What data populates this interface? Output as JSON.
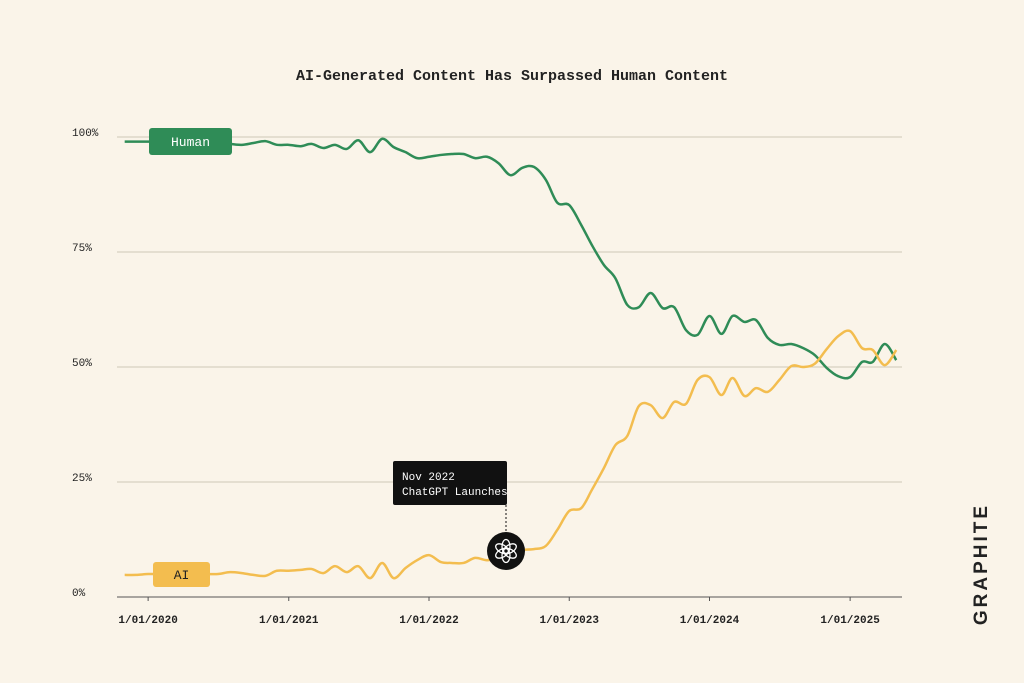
{
  "chart_data": {
    "type": "line",
    "title": "AI-Generated Content Has Surpassed Human Content",
    "brand": "GRAPHITE",
    "annotation": {
      "lines": [
        "Nov 2022",
        "ChatGPT Launches"
      ]
    },
    "x": [
      "2019-11-01",
      "2019-12-01",
      "2020-01-01",
      "2020-02-01",
      "2020-03-01",
      "2020-04-01",
      "2020-05-01",
      "2020-06-01",
      "2020-07-01",
      "2020-08-01",
      "2020-09-01",
      "2020-10-01",
      "2020-11-01",
      "2020-12-01",
      "2021-01-01",
      "2021-02-01",
      "2021-03-01",
      "2021-04-01",
      "2021-05-01",
      "2021-06-01",
      "2021-07-01",
      "2021-08-01",
      "2021-09-01",
      "2021-10-01",
      "2021-11-01",
      "2021-12-01",
      "2022-01-01",
      "2022-02-01",
      "2022-03-01",
      "2022-04-01",
      "2022-05-01",
      "2022-06-01",
      "2022-07-01",
      "2022-08-01",
      "2022-09-01",
      "2022-10-01",
      "2022-11-01",
      "2022-12-01",
      "2023-01-01",
      "2023-02-01",
      "2023-03-01",
      "2023-04-01",
      "2023-05-01",
      "2023-06-01",
      "2023-07-01",
      "2023-08-01",
      "2023-09-01",
      "2023-10-01",
      "2023-11-01",
      "2023-12-01",
      "2024-01-01",
      "2024-02-01",
      "2024-03-01",
      "2024-04-01",
      "2024-05-01",
      "2024-06-01",
      "2024-07-01",
      "2024-08-01",
      "2024-09-01",
      "2024-10-01",
      "2024-11-01",
      "2024-12-01",
      "2025-01-01",
      "2025-02-01",
      "2025-03-01",
      "2025-04-01",
      "2025-05-01"
    ],
    "series": [
      {
        "name": "Human",
        "color": "#2f8c57",
        "values": [
          99,
          99,
          99,
          99,
          99,
          99,
          99,
          99,
          99,
          98.5,
          98.3,
          98.7,
          99.1,
          98.3,
          98.3,
          98,
          98.5,
          97.6,
          98.3,
          97.4,
          99.3,
          96.7,
          99.6,
          97.8,
          96.7,
          95.4,
          95.7,
          96.1,
          96.3,
          96.3,
          95.4,
          95.7,
          94.3,
          91.7,
          93.3,
          93.5,
          90.7,
          85.7,
          85.2,
          80.9,
          76.5,
          72.2,
          69.3,
          63.5,
          63,
          66.1,
          62.8,
          63,
          58,
          57,
          61.1,
          57.2,
          61.1,
          59.8,
          60.2,
          56.3,
          54.8,
          55,
          54.1,
          52.6,
          49.8,
          48,
          47.8,
          51.1,
          51.1,
          55,
          51.5
        ]
      },
      {
        "name": "AI",
        "color": "#f3bd4f",
        "values": [
          4.8,
          4.8,
          5,
          5,
          5,
          5,
          5,
          5,
          5,
          5.4,
          5.2,
          4.8,
          4.6,
          5.7,
          5.7,
          5.9,
          6.1,
          5.2,
          6.7,
          5.4,
          6.7,
          4.1,
          7.4,
          4.1,
          6.3,
          8,
          9.1,
          7.6,
          7.4,
          7.4,
          8.5,
          8,
          8.5,
          9.3,
          10.2,
          10.4,
          11.1,
          14.6,
          18.7,
          19.3,
          23.3,
          28,
          33,
          35,
          41.5,
          41.7,
          38.9,
          42.4,
          42,
          47.2,
          47.8,
          43.9,
          47.6,
          43.7,
          45.4,
          44.6,
          47.2,
          50.2,
          50,
          50.7,
          53.9,
          56.7,
          57.8,
          54.1,
          53.7,
          50.4,
          53.7
        ]
      }
    ],
    "xlim": [
      "2019-10-12",
      "2025-05-16"
    ],
    "xticks": [
      {
        "value": "2020-01-01",
        "label": "1/01/2020"
      },
      {
        "value": "2021-01-01",
        "label": "1/01/2021"
      },
      {
        "value": "2022-01-01",
        "label": "1/01/2022"
      },
      {
        "value": "2023-01-01",
        "label": "1/01/2023"
      },
      {
        "value": "2024-01-01",
        "label": "1/01/2024"
      },
      {
        "value": "2025-01-01",
        "label": "1/01/2025"
      }
    ],
    "ylim": [
      0,
      100
    ],
    "yticks": [
      {
        "value": 0,
        "label": "0%"
      },
      {
        "value": 25,
        "label": "25%"
      },
      {
        "value": 50,
        "label": "50%"
      },
      {
        "value": 75,
        "label": "75%"
      },
      {
        "value": 100,
        "label": "100%"
      }
    ],
    "grid": true
  }
}
